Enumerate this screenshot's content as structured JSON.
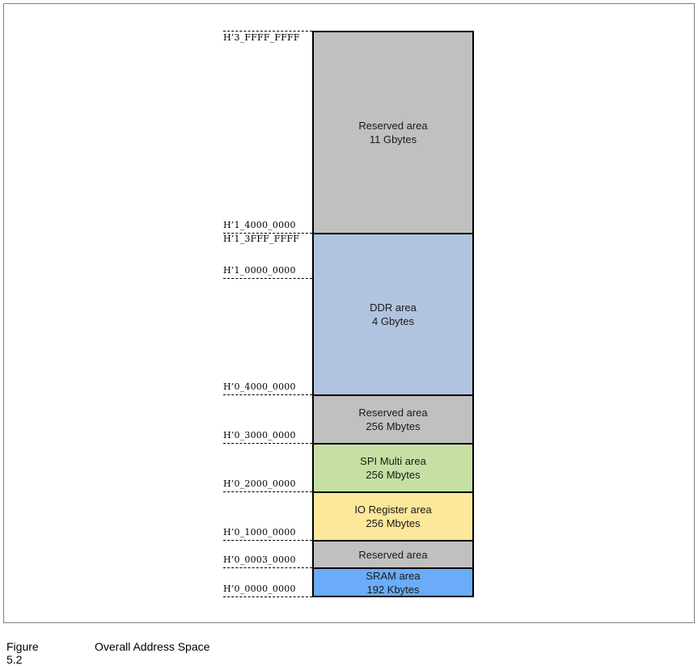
{
  "regions": [
    {
      "name": "Reserved area",
      "size": "11 Gbytes",
      "color": "#c0c0c0"
    },
    {
      "name": "DDR area",
      "size": "4 Gbytes",
      "color": "#b0c4e0"
    },
    {
      "name": "Reserved area",
      "size": "256 Mbytes",
      "color": "#c0c0c0"
    },
    {
      "name": "SPI Multi area",
      "size": "256 Mbytes",
      "color": "#c6e0a4"
    },
    {
      "name": "IO Register area",
      "size": "256 Mbytes",
      "color": "#fde79a"
    },
    {
      "name": "Reserved area",
      "size": "",
      "color": "#c0c0c0"
    },
    {
      "name": "SRAM area",
      "size": "192 Kbytes",
      "color": "#6aacf7"
    }
  ],
  "addresses": [
    "H’3_FFFF_FFFF",
    "H’1_4000_0000",
    "H’1_3FFF_FFFF",
    "H’1_0000_0000",
    "H’0_4000_0000",
    "H’0_3000_0000",
    "H’0_2000_0000",
    "H’0_1000_0000",
    "H’0_0003_0000",
    "H’0_0000_0000"
  ],
  "caption": {
    "number": "Figure 5.2",
    "title": "Overall Address Space"
  }
}
